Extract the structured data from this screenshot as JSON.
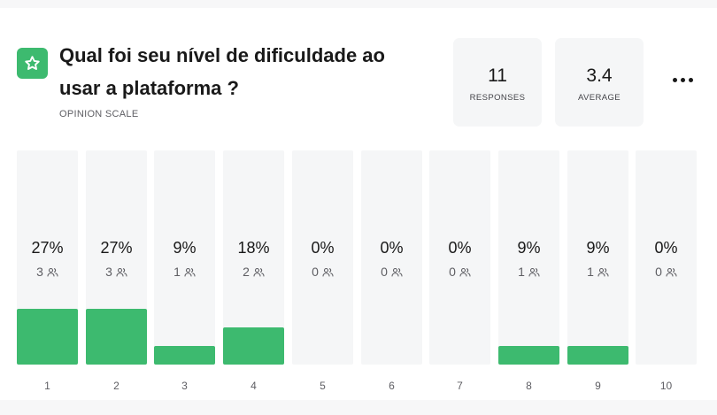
{
  "question": {
    "title": "Qual foi seu nível de dificuldade ao usar a plataforma ?",
    "type_label": "OPINION SCALE",
    "icon": "star-icon"
  },
  "stats": {
    "responses": {
      "value": "11",
      "label": "RESPONSES"
    },
    "average": {
      "value": "3.4",
      "label": "AVERAGE"
    }
  },
  "menu": {
    "icon": "more-horizontal-icon"
  },
  "colors": {
    "accent": "#3dba6f",
    "bar_background": "#f5f6f7"
  },
  "chart_data": {
    "type": "bar",
    "categories": [
      "1",
      "2",
      "3",
      "4",
      "5",
      "6",
      "7",
      "8",
      "9",
      "10"
    ],
    "values": [
      3,
      3,
      1,
      2,
      0,
      0,
      0,
      1,
      1,
      0
    ],
    "percent_labels": [
      "27%",
      "27%",
      "9%",
      "18%",
      "0%",
      "0%",
      "0%",
      "9%",
      "9%",
      "0%"
    ],
    "count_labels": [
      "3",
      "3",
      "1",
      "2",
      "0",
      "0",
      "0",
      "1",
      "1",
      "0"
    ],
    "count_icon": "people-icon",
    "ylim": [
      0,
      11
    ]
  }
}
